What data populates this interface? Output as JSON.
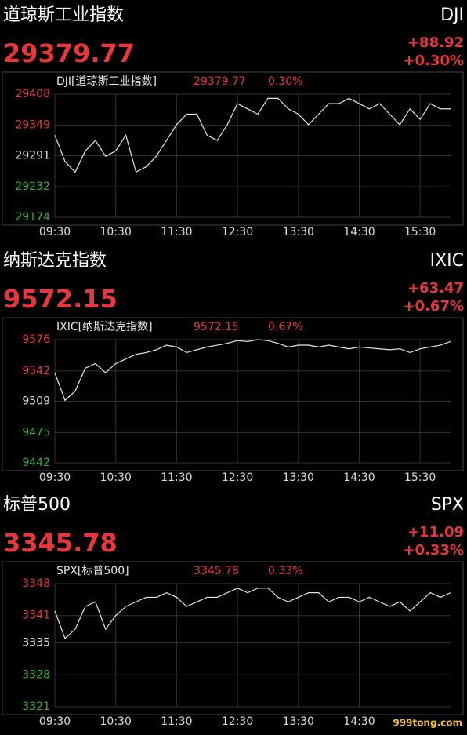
{
  "chart_data": [
    {
      "type": "line",
      "title": "道琼斯工业指数",
      "code": "DJI",
      "price": 29379.77,
      "change": "+88.92",
      "change_pct": "+0.30%",
      "legend_pct": "0.30%",
      "x": [
        0,
        10,
        20,
        30,
        40,
        50,
        60,
        70,
        80,
        90,
        100,
        110,
        120,
        130,
        140,
        150,
        160,
        170,
        180,
        190,
        200,
        210,
        220,
        230,
        240,
        250,
        260,
        270,
        280,
        290,
        300,
        310,
        320,
        330,
        340,
        350,
        360,
        370,
        380,
        390
      ],
      "series": [
        {
          "name": "DJI[道琼斯工业指数]",
          "color": "#e6e6e6",
          "values": [
            29330,
            29280,
            29260,
            29300,
            29320,
            29290,
            29300,
            29330,
            29260,
            29270,
            29290,
            29320,
            29350,
            29370,
            29370,
            29330,
            29320,
            29350,
            29390,
            29380,
            29370,
            29400,
            29400,
            29380,
            29370,
            29350,
            29370,
            29390,
            29390,
            29400,
            29390,
            29380,
            29390,
            29370,
            29350,
            29380,
            29360,
            29390,
            29380,
            29380
          ]
        }
      ],
      "xlim": [
        0,
        390
      ],
      "xticks": [
        {
          "value": 0,
          "label": "09:30"
        },
        {
          "value": 60,
          "label": "10:30"
        },
        {
          "value": 120,
          "label": "11:30"
        },
        {
          "value": 180,
          "label": "12:30"
        },
        {
          "value": 240,
          "label": "13:30"
        },
        {
          "value": 300,
          "label": "14:30"
        },
        {
          "value": 360,
          "label": "15:30"
        }
      ],
      "ylim": [
        29174,
        29408
      ],
      "yticks": [
        29408,
        29349,
        29291,
        29232,
        29174
      ],
      "ytick_colors": [
        "#e8363d",
        "#e8363d",
        "#dddddd",
        "#2fb42f",
        "#2fb42f"
      ],
      "grid": true
    },
    {
      "type": "line",
      "title": "纳斯达克指数",
      "code": "IXIC",
      "price": 9572.15,
      "change": "+63.47",
      "change_pct": "+0.67%",
      "legend_pct": "0.67%",
      "x": [
        0,
        10,
        20,
        30,
        40,
        50,
        60,
        70,
        80,
        90,
        100,
        110,
        120,
        130,
        140,
        150,
        160,
        170,
        180,
        190,
        200,
        210,
        220,
        230,
        240,
        250,
        260,
        270,
        280,
        290,
        300,
        310,
        320,
        330,
        340,
        350,
        360,
        370,
        380,
        390
      ],
      "series": [
        {
          "name": "IXIC[纳斯达克指数]",
          "color": "#e6e6e6",
          "values": [
            9540,
            9510,
            9520,
            9545,
            9550,
            9540,
            9550,
            9555,
            9560,
            9562,
            9565,
            9570,
            9568,
            9562,
            9565,
            9568,
            9570,
            9572,
            9575,
            9574,
            9576,
            9575,
            9572,
            9568,
            9570,
            9570,
            9568,
            9570,
            9568,
            9566,
            9568,
            9567,
            9566,
            9565,
            9566,
            9562,
            9566,
            9568,
            9570,
            9574
          ]
        }
      ],
      "xlim": [
        0,
        390
      ],
      "xticks": [
        {
          "value": 0,
          "label": "09:30"
        },
        {
          "value": 60,
          "label": "10:30"
        },
        {
          "value": 120,
          "label": "11:30"
        },
        {
          "value": 180,
          "label": "12:30"
        },
        {
          "value": 240,
          "label": "13:30"
        },
        {
          "value": 300,
          "label": "14:30"
        },
        {
          "value": 360,
          "label": "15:30"
        }
      ],
      "ylim": [
        9442,
        9576
      ],
      "yticks": [
        9576,
        9542,
        9509,
        9475,
        9442
      ],
      "ytick_colors": [
        "#e8363d",
        "#e8363d",
        "#dddddd",
        "#2fb42f",
        "#2fb42f"
      ],
      "grid": true
    },
    {
      "type": "line",
      "title": "标普500",
      "code": "SPX",
      "price": 3345.78,
      "change": "+11.09",
      "change_pct": "+0.33%",
      "legend_pct": "0.33%",
      "x": [
        0,
        10,
        20,
        30,
        40,
        50,
        60,
        70,
        80,
        90,
        100,
        110,
        120,
        130,
        140,
        150,
        160,
        170,
        180,
        190,
        200,
        210,
        220,
        230,
        240,
        250,
        260,
        270,
        280,
        290,
        300,
        310,
        320,
        330,
        340,
        350,
        360,
        370,
        380,
        390
      ],
      "series": [
        {
          "name": "SPX[标普500]",
          "color": "#e6e6e6",
          "values": [
            3342,
            3336,
            3338,
            3343,
            3344,
            3338,
            3341,
            3343,
            3344,
            3345,
            3345,
            3346,
            3345,
            3343,
            3344,
            3345,
            3345,
            3346,
            3347,
            3346,
            3347,
            3347,
            3345,
            3344,
            3345,
            3346,
            3346,
            3344,
            3345,
            3345,
            3344,
            3345,
            3344,
            3343,
            3344,
            3342,
            3344,
            3346,
            3345,
            3346
          ]
        }
      ],
      "xlim": [
        0,
        390
      ],
      "xticks": [
        {
          "value": 0,
          "label": "09:30"
        },
        {
          "value": 60,
          "label": "10:30"
        },
        {
          "value": 120,
          "label": "11:30"
        },
        {
          "value": 180,
          "label": "12:30"
        },
        {
          "value": 240,
          "label": "13:30"
        },
        {
          "value": 300,
          "label": "14:30"
        }
      ],
      "ylim": [
        3321,
        3348
      ],
      "yticks": [
        3348,
        3341,
        3335,
        3328,
        3321
      ],
      "ytick_colors": [
        "#e8363d",
        "#e8363d",
        "#dddddd",
        "#2fb42f",
        "#2fb42f"
      ],
      "grid": true
    }
  ],
  "watermark": "999tong.com"
}
